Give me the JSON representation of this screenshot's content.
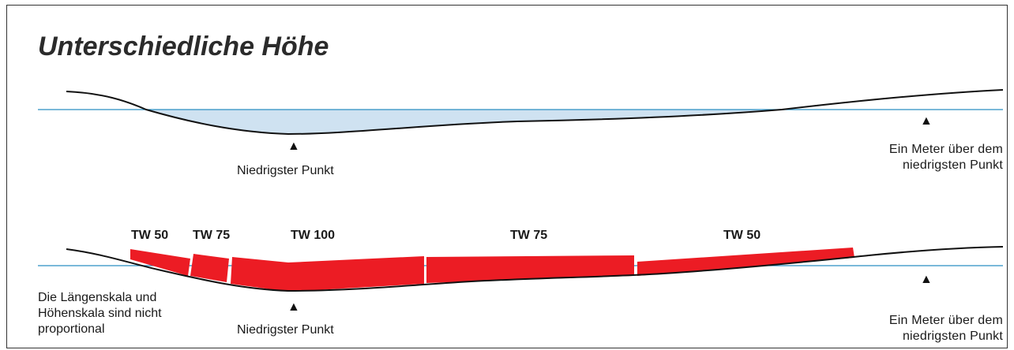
{
  "title": "Unterschiedliche Höhe",
  "top_panel": {
    "low_point_label": "Niedrigster Punkt",
    "meter_label_line1": "Ein Meter über dem",
    "meter_label_line2": "niedrigsten Punkt"
  },
  "bottom_panel": {
    "segments": [
      "TW 50",
      "TW 75",
      "TW 100",
      "TW 75",
      "TW 50"
    ],
    "low_point_label": "Niedrigster Punkt",
    "meter_label_line1": "Ein Meter über dem",
    "meter_label_line2": "niedrigsten Punkt",
    "note_line1": "Die Längenskala und",
    "note_line2": "Höhenskala sind nicht",
    "note_line3": "proportional"
  },
  "marker_glyph": "▲",
  "colors": {
    "water_line": "#2a8fc2",
    "water_fill": "#cfe2f1",
    "terrain": "#111111",
    "segment_fill": "#ec1c24"
  }
}
